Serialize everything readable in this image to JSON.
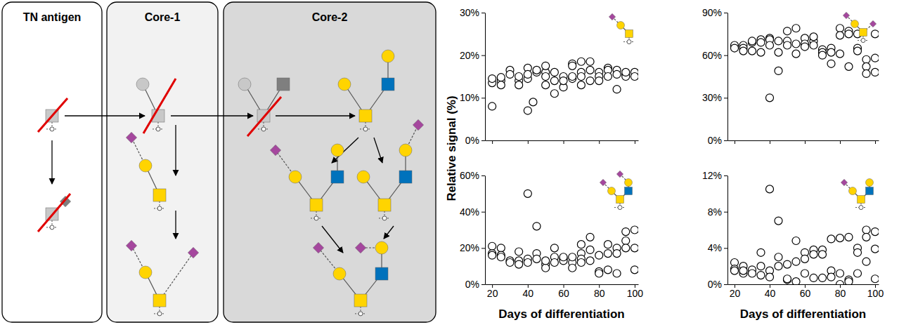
{
  "diagram": {
    "panels": [
      {
        "title": "TN antigen"
      },
      {
        "title": "Core-1"
      },
      {
        "title": "Core-2"
      }
    ]
  },
  "chart_data": [
    {
      "type": "scatter",
      "marker": "circle",
      "color": "#000000",
      "tick_labels": "y",
      "ylabel": "Relative signal (%)",
      "xlim": [
        16,
        102
      ],
      "xticks": [
        20,
        40,
        60,
        80,
        100
      ],
      "ylim": [
        0,
        30
      ],
      "yticks": [
        {
          "value": 0,
          "label": "0%"
        },
        {
          "value": 10,
          "label": "10%"
        },
        {
          "value": 20,
          "label": "20%"
        },
        {
          "value": 30,
          "label": "30%"
        }
      ],
      "x": [
        20,
        20,
        20,
        25,
        25,
        25,
        30,
        30,
        35,
        35,
        35,
        40,
        40,
        40,
        40,
        43,
        45,
        45,
        50,
        50,
        50,
        50,
        55,
        55,
        55,
        60,
        60,
        60,
        65,
        65,
        65,
        65,
        70,
        70,
        70,
        70,
        75,
        75,
        75,
        80,
        80,
        80,
        85,
        85,
        85,
        90,
        90,
        90,
        95,
        95,
        95,
        100,
        100
      ],
      "values": [
        13.5,
        14.5,
        8,
        14,
        14.8,
        13,
        16.5,
        15.5,
        14,
        15,
        13,
        17,
        14.5,
        7,
        15.5,
        9,
        16,
        16.5,
        16,
        15,
        13,
        17.5,
        14,
        11,
        16,
        15,
        12.5,
        14,
        18,
        17.5,
        14.5,
        15,
        18.5,
        16,
        13,
        15,
        18.5,
        16.5,
        14,
        16,
        15,
        14,
        17,
        16.5,
        15,
        16.5,
        15.5,
        12,
        15.5,
        15,
        16,
        16,
        15
      ]
    },
    {
      "type": "scatter",
      "marker": "circle",
      "color": "#000000",
      "tick_labels": "y",
      "xlim": [
        16,
        102
      ],
      "xticks": [
        20,
        40,
        60,
        80,
        100
      ],
      "ylim": [
        0,
        90
      ],
      "yticks": [
        {
          "value": 0,
          "label": "0%"
        },
        {
          "value": 30,
          "label": "30%"
        },
        {
          "value": 60,
          "label": "60%"
        },
        {
          "value": 90,
          "label": "90%"
        }
      ],
      "x": [
        20,
        20,
        20,
        25,
        25,
        25,
        30,
        30,
        30,
        35,
        35,
        35,
        40,
        40,
        40,
        40,
        45,
        45,
        45,
        50,
        50,
        50,
        55,
        55,
        55,
        60,
        60,
        60,
        65,
        65,
        65,
        70,
        70,
        70,
        75,
        75,
        75,
        80,
        80,
        80,
        85,
        85,
        85,
        90,
        90,
        90,
        95,
        95,
        95,
        100,
        100,
        100
      ],
      "values": [
        66,
        67,
        65,
        67,
        65,
        63,
        69,
        70,
        63,
        71,
        69,
        62,
        72,
        71,
        30,
        67,
        70,
        62,
        49,
        77,
        70,
        67,
        79,
        68,
        61,
        72,
        68,
        66,
        70,
        67,
        73,
        64,
        62,
        60,
        65,
        62,
        54,
        79,
        74,
        61,
        77,
        75,
        52,
        75,
        65,
        63,
        57,
        52,
        47,
        75,
        58,
        48
      ]
    },
    {
      "type": "scatter",
      "marker": "circle",
      "color": "#000000",
      "xlabel": "Days of differentiation",
      "xlim": [
        16,
        102
      ],
      "xticks": [
        20,
        40,
        60,
        80,
        100
      ],
      "ylim": [
        0,
        60
      ],
      "yticks": [
        {
          "value": 0,
          "label": "0%"
        },
        {
          "value": 20,
          "label": "20%"
        },
        {
          "value": 40,
          "label": "40%"
        },
        {
          "value": 60,
          "label": "60%"
        }
      ],
      "x": [
        20,
        20,
        20,
        25,
        25,
        25,
        30,
        30,
        35,
        35,
        35,
        40,
        40,
        40,
        45,
        45,
        45,
        50,
        50,
        50,
        55,
        55,
        55,
        60,
        60,
        60,
        65,
        65,
        65,
        70,
        70,
        70,
        70,
        75,
        75,
        75,
        80,
        80,
        80,
        85,
        85,
        85,
        90,
        90,
        90,
        95,
        95,
        95,
        100,
        100,
        100
      ],
      "values": [
        21,
        17,
        16,
        20,
        16,
        15,
        13,
        12,
        18,
        13,
        11,
        50,
        14,
        12,
        32,
        17,
        14,
        11,
        9,
        13,
        20,
        15,
        12,
        14,
        13,
        15,
        12,
        9,
        15,
        22,
        17,
        14,
        12,
        26,
        19,
        13,
        16,
        7,
        6,
        22,
        8,
        17,
        20,
        17,
        6,
        29,
        24,
        20,
        30,
        20,
        8
      ]
    },
    {
      "type": "scatter",
      "marker": "circle",
      "color": "#000000",
      "xlabel": "Days of differentiation",
      "xlim": [
        16,
        102
      ],
      "xticks": [
        20,
        40,
        60,
        80,
        100
      ],
      "ylim": [
        0,
        12
      ],
      "yticks": [
        {
          "value": 0,
          "label": "0%"
        },
        {
          "value": 4,
          "label": "4%"
        },
        {
          "value": 8,
          "label": "8%"
        },
        {
          "value": 12,
          "label": "12%"
        }
      ],
      "x": [
        20,
        20,
        20,
        25,
        25,
        25,
        30,
        30,
        35,
        35,
        35,
        40,
        40,
        40,
        45,
        45,
        45,
        50,
        50,
        50,
        55,
        55,
        55,
        60,
        60,
        60,
        65,
        65,
        65,
        70,
        70,
        70,
        75,
        75,
        75,
        80,
        80,
        80,
        85,
        85,
        85,
        90,
        90,
        90,
        95,
        95,
        95,
        100,
        100,
        100
      ],
      "values": [
        2.4,
        1.7,
        1.5,
        2,
        1.2,
        1.5,
        1.6,
        1.2,
        3.5,
        1,
        2,
        10.5,
        1.5,
        0.8,
        7,
        3,
        2,
        0.5,
        0.6,
        2.2,
        4.8,
        2.5,
        0.3,
        3.5,
        2.8,
        1.2,
        3.8,
        3.3,
        0.7,
        3.8,
        3.3,
        0.7,
        5,
        1.5,
        0.8,
        5.1,
        1.2,
        0,
        5.2,
        0.5,
        0.3,
        4,
        3.5,
        1.2,
        6,
        5.2,
        2.5,
        5.8,
        3.9,
        0.6
      ]
    }
  ]
}
